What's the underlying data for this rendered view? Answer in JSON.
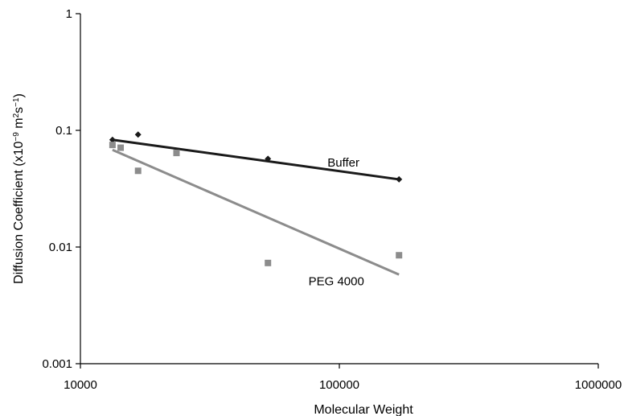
{
  "chart_data": {
    "type": "scatter",
    "title": "",
    "xlabel": "Molecular Weight",
    "ylabel_parts": {
      "main": "Diffusion Coefficient (x10",
      "exp1": "−9",
      "mid": " m",
      "exp2": "2",
      "mid2": "s",
      "exp3": "−1",
      "end": ")"
    },
    "x_scale": "log",
    "y_scale": "log",
    "xlim": [
      10000,
      1000000
    ],
    "ylim": [
      0.001,
      1
    ],
    "x_ticks": [
      10000,
      100000,
      1000000
    ],
    "x_tick_labels": [
      "10000",
      "100000",
      "1000000"
    ],
    "y_ticks": [
      0.001,
      0.01,
      0.1,
      1
    ],
    "y_tick_labels": [
      "0.001",
      "0.01",
      "0.1",
      "1"
    ],
    "grid": false,
    "series": [
      {
        "name": "Buffer",
        "color": "#1a1a1a",
        "marker": "diamond",
        "points": [
          {
            "x": 13300,
            "y": 0.083
          },
          {
            "x": 16700,
            "y": 0.092
          },
          {
            "x": 53000,
            "y": 0.057
          },
          {
            "x": 170000,
            "y": 0.038
          }
        ],
        "trendline": {
          "x": [
            13300,
            170000
          ],
          "y": [
            0.083,
            0.038
          ]
        }
      },
      {
        "name": "PEG 4000",
        "color": "#8c8c8c",
        "marker": "square",
        "points": [
          {
            "x": 13300,
            "y": 0.075
          },
          {
            "x": 14300,
            "y": 0.071
          },
          {
            "x": 16700,
            "y": 0.045
          },
          {
            "x": 23500,
            "y": 0.064
          },
          {
            "x": 53000,
            "y": 0.0073
          },
          {
            "x": 170000,
            "y": 0.0085
          }
        ],
        "trendline": {
          "x": [
            13300,
            170000
          ],
          "y": [
            0.068,
            0.0058
          ]
        }
      }
    ],
    "annotations": [
      {
        "text": "Buffer",
        "series": 0
      },
      {
        "text": "PEG 4000",
        "series": 1
      }
    ]
  }
}
